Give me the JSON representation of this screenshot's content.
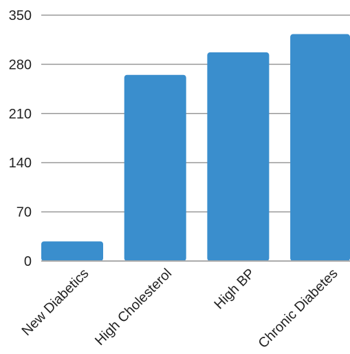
{
  "chart_data": {
    "type": "bar",
    "categories": [
      "New Diabetics",
      "High Cholesterol",
      "High BP",
      "Chronic Diabetes"
    ],
    "values": [
      28,
      265,
      297,
      323
    ],
    "title": "",
    "xlabel": "",
    "ylabel": "",
    "ylim": [
      0,
      350
    ],
    "yticks": [
      0,
      70,
      140,
      210,
      280,
      350
    ],
    "grid": true,
    "legend": "none",
    "bar_color": "#3a8ecd"
  }
}
